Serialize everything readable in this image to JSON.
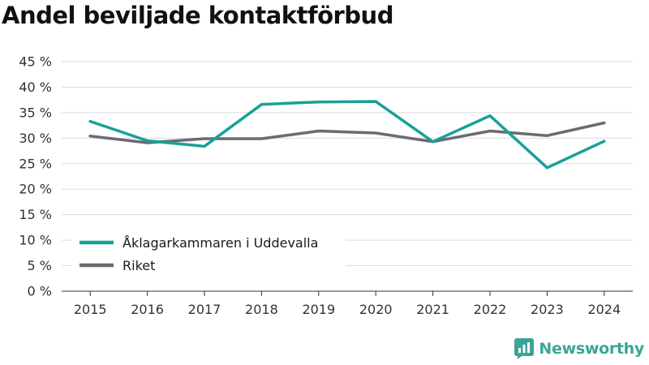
{
  "page_title": "Andel beviljade kontaktförbud",
  "brand": {
    "name": "Newsworthy",
    "icon": "newsworthy-logo-icon",
    "color": "#3aa597"
  },
  "chart_data": {
    "type": "line",
    "title": "Andel beviljade kontaktförbud",
    "xlabel": "",
    "ylabel": "",
    "categories": [
      "2015",
      "2016",
      "2017",
      "2018",
      "2019",
      "2020",
      "2021",
      "2022",
      "2023",
      "2024"
    ],
    "y_ticks": [
      "0 %",
      "5 %",
      "10 %",
      "15 %",
      "20 %",
      "25 %",
      "30 %",
      "35 %",
      "40 %",
      "45 %"
    ],
    "ylim": [
      0,
      45
    ],
    "grid": true,
    "legend_position": "bottom-left",
    "series": [
      {
        "name": "Åklagarkammaren i Uddevalla",
        "color": "#17a196",
        "values": [
          33.3,
          29.5,
          28.4,
          36.6,
          37.1,
          37.2,
          29.3,
          34.4,
          24.2,
          29.4
        ]
      },
      {
        "name": "Riket",
        "color": "#6c6a72",
        "values": [
          30.4,
          29.1,
          29.9,
          29.9,
          31.4,
          31.0,
          29.3,
          31.4,
          30.5,
          33.0
        ]
      }
    ]
  }
}
